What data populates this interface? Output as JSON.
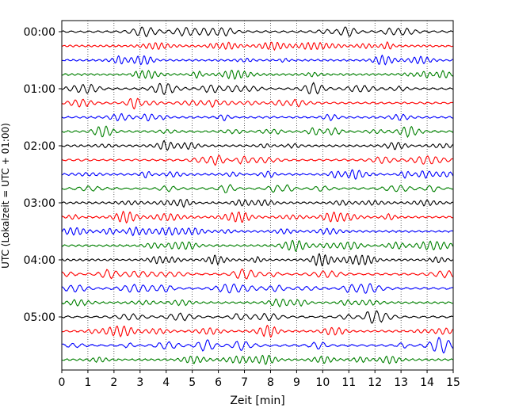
{
  "chart_data": {
    "type": "line",
    "title": "",
    "xlabel": "Zeit  [min]",
    "ylabel": "UTC (Lokalzeit = UTC + 01:00)",
    "xlim": [
      0,
      15
    ],
    "x_ticks": [
      "0",
      "1",
      "2",
      "3",
      "4",
      "5",
      "6",
      "7",
      "8",
      "9",
      "10",
      "11",
      "12",
      "13",
      "14",
      "15"
    ],
    "grid": {
      "x": "dotted",
      "y": "none"
    },
    "trace_interval_minutes": 15,
    "trace_count": 24,
    "trace_colors": [
      "#000000",
      "#ff0000",
      "#0000ff",
      "#008000"
    ],
    "y_ticks": [
      {
        "label": "00:00",
        "trace": 0
      },
      {
        "label": "01:00",
        "trace": 4
      },
      {
        "label": "02:00",
        "trace": 8
      },
      {
        "label": "03:00",
        "trace": 12
      },
      {
        "label": "04:00",
        "trace": 16
      },
      {
        "label": "05:00",
        "trace": 20
      }
    ]
  }
}
